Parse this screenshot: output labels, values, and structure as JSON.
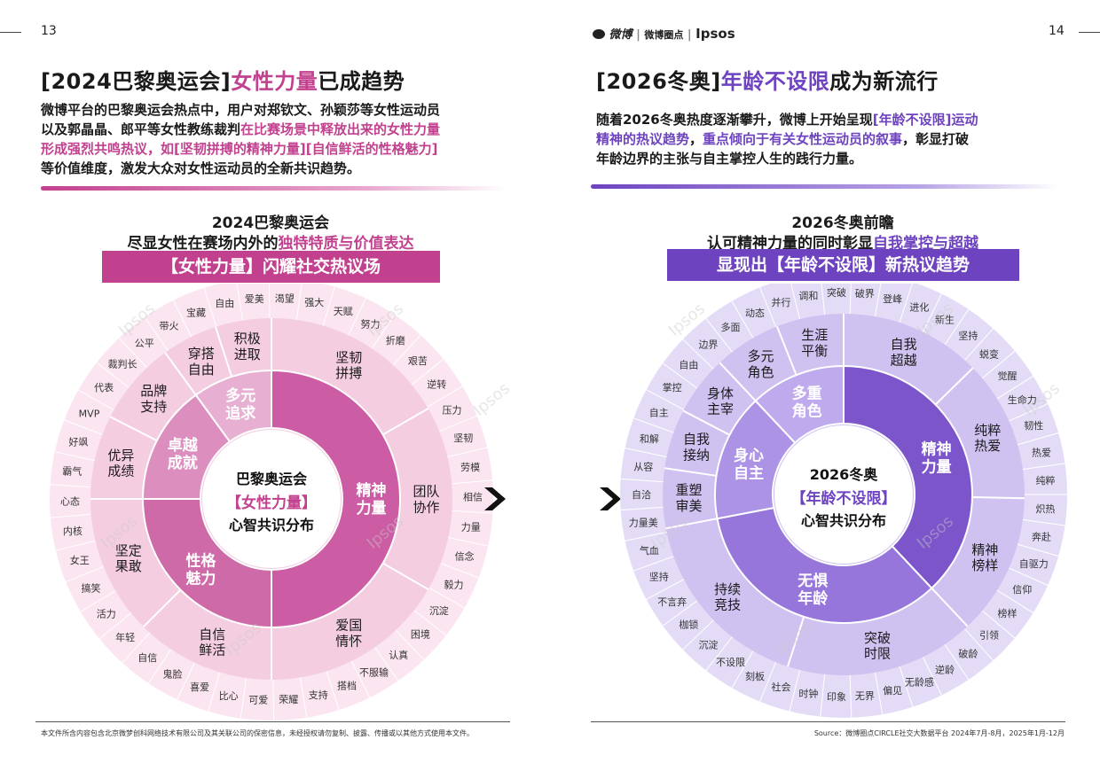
{
  "left": {
    "page_number": "13",
    "title_pre": "[2024巴黎奥运会]",
    "title_hl": "女性力量",
    "title_post": "已成趋势",
    "intro_l1": "微博平台的巴黎奥运会热点中，用户对郑钦文、孙颖莎等女性运动员",
    "intro_l2_a": "以及郭晶晶、郎平等女性教练裁判",
    "intro_l2_b": "在比赛场景中释放出来的女性力量",
    "intro_l3_a": "形成强烈共鸣热议，如[坚韧拼搏的精神力量][自信鲜活的性格魅力]",
    "intro_l4": "等价值维度，激发大众对女性运动员的全新共识趋势。",
    "chart_sub1": "2024巴黎奥运会",
    "chart_sub2_a": "尽显女性在赛场内外的",
    "chart_sub2_b": "独特特质与价值表达",
    "chart_band": "【女性力量】闪耀社交热议场",
    "center_l1": "巴黎奥运会",
    "center_l2": "【女性力量】",
    "center_l3": "心智共识分布",
    "footer": "本文件所含内容包含北京微梦创科网络技术有限公司及其关联公司的保密信息，未经授权请勿复制、披露、传播或以其他方式使用本文件。",
    "watermark": "Ipsos"
  },
  "right": {
    "page_number": "14",
    "logo_weibo": "微博",
    "logo_circle": "微博圈点",
    "logo_ipsos": "Ipsos",
    "title_pre": "[2026冬奥]",
    "title_hl": "年龄不设限",
    "title_post": "成为新流行",
    "intro_l1_a": "随着2026冬奥热度逐渐攀升，微博上开始呈现",
    "intro_l1_b": "[年龄不设限]运动",
    "intro_l2_a": "精神的热议趋势",
    "intro_l2_b": "，",
    "intro_l2_c": "重点倾向于有关女性运动员的叙事",
    "intro_l2_d": "，彰显打破",
    "intro_l3": "年龄边界的主张与自主掌控人生的践行力量。",
    "chart_sub1": "2026冬奥前瞻",
    "chart_sub2_a": "认可精神力量的同时彰显",
    "chart_sub2_b": "自我掌控与超越",
    "chart_band": "显现出【年龄不设限】新热议趋势",
    "center_l1": "2026冬奥",
    "center_l2": "【年龄不设限】",
    "center_l3": "心智共识分布",
    "source": "Source：微博圈点CIRCLE社交大数据平台 2024年7月-8月，2025年1月-12月"
  },
  "chart_data": [
    {
      "type": "pie",
      "inner": [
        {
          "label": "精神力量",
          "value": 50
        },
        {
          "label": "性格魅力",
          "value": 25
        },
        {
          "label": "卓越成就",
          "value": 15
        },
        {
          "label": "多元追求",
          "value": 10
        }
      ],
      "middle": [
        {
          "label": "坚韧拼搏",
          "parent": "精神力量"
        },
        {
          "label": "团队协作",
          "parent": "精神力量"
        },
        {
          "label": "爱国情怀",
          "parent": "精神力量"
        },
        {
          "label": "自信鲜活",
          "parent": "性格魅力"
        },
        {
          "label": "坚定果敢",
          "parent": "性格魅力"
        },
        {
          "label": "优异成绩",
          "parent": "卓越成就"
        },
        {
          "label": "品牌支持",
          "parent": "卓越成就"
        },
        {
          "label": "穿搭自由",
          "parent": "多元追求"
        },
        {
          "label": "积极进取",
          "parent": "多元追求"
        }
      ],
      "outer": [
        "强大",
        "天赋",
        "努力",
        "折磨",
        "艰苦",
        "逆转",
        "压力",
        "坚韧",
        "劳模",
        "相信",
        "力量",
        "信念",
        "毅力",
        "沉淀",
        "困境",
        "认真",
        "不服输",
        "搭档",
        "支持",
        "荣耀",
        "可爱",
        "比心",
        "喜爱",
        "鬼脸",
        "自信",
        "年轻",
        "活力",
        "搞笑",
        "女王",
        "内核",
        "心态",
        "霸气",
        "好飒",
        "MVP",
        "代表",
        "裁判长",
        "公平",
        "带火",
        "宝藏",
        "自由",
        "爱美",
        "渴望"
      ]
    },
    {
      "type": "pie",
      "inner": [
        {
          "label": "精神力量",
          "value": 38
        },
        {
          "label": "无惧年龄",
          "value": 34
        },
        {
          "label": "身心自主",
          "value": 16
        },
        {
          "label": "多重角色",
          "value": 12
        }
      ],
      "middle": [
        {
          "label": "自我超越",
          "parent": "精神力量"
        },
        {
          "label": "纯粹热爱",
          "parent": "精神力量"
        },
        {
          "label": "精神榜样",
          "parent": "精神力量"
        },
        {
          "label": "突破时限",
          "parent": "无惧年龄"
        },
        {
          "label": "持续竞技",
          "parent": "无惧年龄"
        },
        {
          "label": "重塑审美",
          "parent": "身心自主"
        },
        {
          "label": "自我接纳",
          "parent": "身心自主"
        },
        {
          "label": "身体主宰",
          "parent": "身心自主"
        },
        {
          "label": "多元角色",
          "parent": "多重角色"
        },
        {
          "label": "生涯平衡",
          "parent": "多重角色"
        }
      ],
      "outer": [
        "破界",
        "登峰",
        "进化",
        "新生",
        "坚持",
        "蜕变",
        "觉醒",
        "生命力",
        "韧性",
        "热爱",
        "纯粹",
        "炽热",
        "奔赴",
        "自驱力",
        "信仰",
        "榜样",
        "引领",
        "破龄",
        "逆龄",
        "无龄感",
        "偏见",
        "无界",
        "印象",
        "时钟",
        "社会",
        "刻板",
        "不设限",
        "沉淀",
        "枷锁",
        "不言弃",
        "坚持",
        "气血",
        "力量美",
        "自洽",
        "从容",
        "和解",
        "自主",
        "掌控",
        "自由",
        "边界",
        "多面",
        "动态",
        "并行",
        "调和",
        "突破"
      ]
    }
  ]
}
